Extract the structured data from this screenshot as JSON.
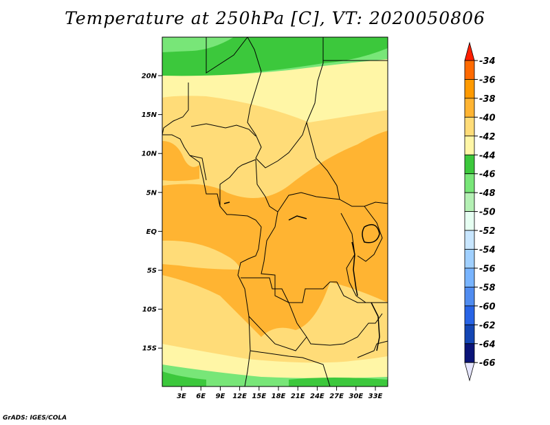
{
  "title": "Temperature at 250hPa [C], VT: 2020050806",
  "footer": "GrADS: IGES/COLA",
  "map": {
    "lat_ticks": [
      "20N",
      "15N",
      "10N",
      "5N",
      "EQ",
      "5S",
      "10S",
      "15S"
    ],
    "lon_ticks": [
      "3E",
      "6E",
      "9E",
      "12E",
      "15E",
      "18E",
      "21E",
      "24E",
      "27E",
      "30E",
      "33E"
    ]
  },
  "colorbar": {
    "labels": [
      "-34",
      "-36",
      "-38",
      "-40",
      "-42",
      "-44",
      "-46",
      "-48",
      "-50",
      "-52",
      "-54",
      "-56",
      "-58",
      "-60",
      "-62",
      "-64",
      "-66"
    ],
    "colors": [
      "#ff3c00",
      "#ff6a00",
      "#ff9a00",
      "#ffb432",
      "#ffdc78",
      "#fff6a6",
      "#3cc83c",
      "#78e678",
      "#b4f0b4",
      "#e6fff2",
      "#c8e6ff",
      "#a0d0ff",
      "#78b4ff",
      "#508cf0",
      "#2864e6",
      "#1446b4",
      "#0a1478"
    ],
    "top_arrow_color": "#ff1e00",
    "bottom_arrow_color": "#e6e6ff"
  }
}
